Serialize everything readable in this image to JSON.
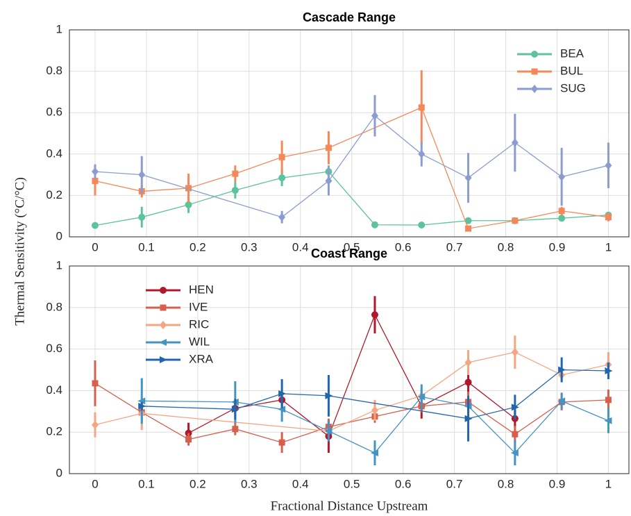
{
  "chart_data": [
    {
      "type": "line",
      "title": "Cascade Range",
      "ylabel": "Thermal Sensitivity (°C/°C)",
      "xlim": [
        -0.05,
        1.04
      ],
      "ylim": [
        0,
        1
      ],
      "xticks": [
        0,
        0.1,
        0.2,
        0.3,
        0.4,
        0.5,
        0.6,
        0.7,
        0.8,
        0.9,
        1
      ],
      "yticks": [
        0,
        0.2,
        0.4,
        0.6,
        0.8,
        1
      ],
      "grid": true,
      "legend": "upper right",
      "series": [
        {
          "name": "BEA",
          "color": "#5cc39c",
          "marker": "circle",
          "x": [
            0,
            0.091,
            0.182,
            0.273,
            0.364,
            0.455,
            0.545,
            0.636,
            0.727,
            0.818,
            0.909,
            1
          ],
          "values": [
            0.055,
            0.095,
            0.155,
            0.225,
            0.285,
            0.315,
            0.058,
            0.057,
            0.078,
            0.078,
            0.09,
            0.105
          ],
          "errors": [
            0.008,
            0.05,
            0.04,
            0.04,
            0.04,
            0.03,
            0.008,
            0.008,
            0.008,
            0.008,
            0.01,
            0.01
          ]
        },
        {
          "name": "BUL",
          "color": "#f5885a",
          "marker": "square",
          "x": [
            0,
            0.091,
            0.182,
            0.273,
            0.364,
            0.455,
            0.636,
            0.727,
            0.818,
            0.909,
            1
          ],
          "values": [
            0.27,
            0.22,
            0.235,
            0.305,
            0.385,
            0.43,
            0.625,
            0.04,
            0.078,
            0.125,
            0.095
          ],
          "errors": [
            0.07,
            0.03,
            0.07,
            0.04,
            0.08,
            0.08,
            0.18,
            0.008,
            0.008,
            0.02,
            0.02
          ]
        },
        {
          "name": "SUG",
          "color": "#8b9dd0",
          "marker": "diamond",
          "x": [
            0,
            0.091,
            0.364,
            0.455,
            0.545,
            0.636,
            0.727,
            0.818,
            0.909,
            1
          ],
          "values": [
            0.315,
            0.3,
            0.095,
            0.27,
            0.585,
            0.4,
            0.285,
            0.455,
            0.29,
            0.345
          ],
          "errors": [
            0.035,
            0.09,
            0.03,
            0.07,
            0.1,
            0.06,
            0.12,
            0.14,
            0.14,
            0.11
          ]
        }
      ]
    },
    {
      "type": "line",
      "title": "Coast Range",
      "xlabel": "Fractional Distance Upstream",
      "xlim": [
        -0.05,
        1.04
      ],
      "ylim": [
        0,
        1
      ],
      "xticks": [
        0,
        0.1,
        0.2,
        0.3,
        0.4,
        0.5,
        0.6,
        0.7,
        0.8,
        0.9,
        1
      ],
      "yticks": [
        0,
        0.2,
        0.4,
        0.6,
        0.8,
        1
      ],
      "grid": true,
      "legend": "upper left",
      "series": [
        {
          "name": "HEN",
          "color": "#b2182b",
          "marker": "circle",
          "x": [
            0.182,
            0.273,
            0.364,
            0.455,
            0.545,
            0.636,
            0.727,
            0.818
          ],
          "values": [
            0.195,
            0.315,
            0.355,
            0.18,
            0.765,
            0.325,
            0.44,
            0.265
          ],
          "errors": [
            0.05,
            0.03,
            0.03,
            0.08,
            0.09,
            0.06,
            0.06,
            0.04
          ]
        },
        {
          "name": "IVE",
          "color": "#d6604d",
          "marker": "square",
          "x": [
            0,
            0.091,
            0.182,
            0.273,
            0.364,
            0.455,
            0.545,
            0.636,
            0.727,
            0.818,
            0.909,
            1
          ],
          "values": [
            0.435,
            0.295,
            0.165,
            0.215,
            0.15,
            0.225,
            0.275,
            0.325,
            0.345,
            0.19,
            0.345,
            0.355
          ],
          "errors": [
            0.11,
            0.04,
            0.03,
            0.03,
            0.05,
            0.04,
            0.03,
            0.03,
            0.05,
            0.04,
            0.04,
            0.05
          ]
        },
        {
          "name": "RIC",
          "color": "#f4a582",
          "marker": "diamond",
          "x": [
            0,
            0.091,
            0.455,
            0.545,
            0.636,
            0.727,
            0.818,
            0.909,
            1
          ],
          "values": [
            0.235,
            0.29,
            0.205,
            0.305,
            0.375,
            0.535,
            0.585,
            0.475,
            0.525
          ],
          "errors": [
            0.06,
            0.08,
            0.03,
            0.05,
            0.03,
            0.06,
            0.08,
            0.03,
            0.06
          ]
        },
        {
          "name": "WIL",
          "color": "#4393c3",
          "marker": "left",
          "x": [
            0.091,
            0.273,
            0.364,
            0.455,
            0.545,
            0.636,
            0.727,
            0.818,
            0.909,
            1
          ],
          "values": [
            0.35,
            0.345,
            0.31,
            0.205,
            0.1,
            0.37,
            0.325,
            0.1,
            0.35,
            0.255
          ],
          "errors": [
            0.11,
            0.1,
            0.06,
            0.05,
            0.06,
            0.06,
            0.03,
            0.06,
            0.04,
            0.06
          ]
        },
        {
          "name": "XRA",
          "color": "#2166ac",
          "marker": "right",
          "x": [
            0.091,
            0.273,
            0.364,
            0.455,
            0.727,
            0.818,
            0.909,
            1
          ],
          "values": [
            0.325,
            0.31,
            0.385,
            0.375,
            0.265,
            0.32,
            0.5,
            0.495
          ],
          "errors": [
            0.02,
            0.05,
            0.07,
            0.1,
            0.11,
            0.06,
            0.06,
            0.04
          ]
        }
      ]
    }
  ]
}
